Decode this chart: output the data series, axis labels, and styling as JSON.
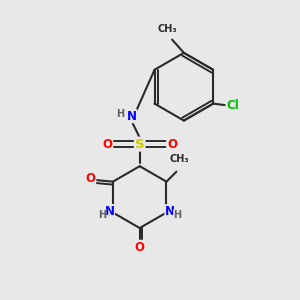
{
  "bg_color": "#e8e8e8",
  "bond_color": "#2a2a2a",
  "colors": {
    "N": "#0000ff",
    "O": "#ff0000",
    "S": "#cccc00",
    "Cl": "#00bb00",
    "C": "#2a2a2a",
    "H": "#606060"
  },
  "font_size_atom": 8.5,
  "font_size_small": 7.0
}
